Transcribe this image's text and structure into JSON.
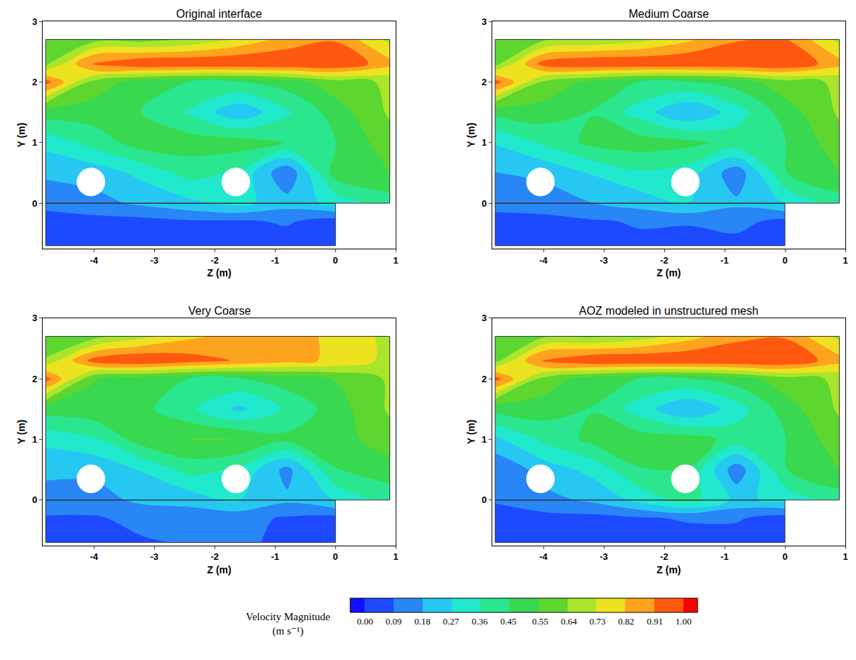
{
  "chart_data": [
    {
      "type": "contour",
      "title": "Original interface",
      "x_label": "Z (m)",
      "y_label": "Y (m)",
      "xlim": [
        -4.85,
        1.0
      ],
      "ylim": [
        -0.75,
        3.0
      ],
      "xticks": [
        -4,
        -3,
        -2,
        -1,
        0,
        1
      ],
      "yticks": [
        0,
        1,
        2,
        3
      ],
      "x": [
        -4.8,
        -4.0,
        -3.2,
        -2.4,
        -1.6,
        -0.8,
        0,
        0.9
      ],
      "y": [
        -0.7,
        -0.3,
        0,
        0.5,
        1.0,
        1.5,
        2.0,
        2.3,
        2.7
      ],
      "values": [
        [
          0.03,
          0.04,
          0.05,
          0.05,
          0.05,
          0.05,
          0.03,
          null
        ],
        [
          0.05,
          0.06,
          0.06,
          0.08,
          0.08,
          0.1,
          0.05,
          null
        ],
        [
          0.12,
          0.15,
          0.2,
          0.25,
          0.3,
          0.22,
          0.3,
          0.4
        ],
        [
          0.2,
          0.22,
          0.3,
          0.4,
          0.35,
          0.1,
          0.5,
          0.55
        ],
        [
          0.3,
          0.4,
          0.5,
          0.5,
          0.5,
          0.45,
          0.45,
          0.6
        ],
        [
          0.5,
          0.5,
          0.45,
          0.35,
          0.2,
          0.35,
          0.5,
          0.65
        ],
        [
          0.95,
          0.6,
          0.5,
          0.45,
          0.45,
          0.5,
          0.6,
          0.65
        ],
        [
          0.6,
          0.95,
          1.0,
          1.0,
          1.0,
          1.0,
          1.0,
          0.85
        ],
        [
          0.55,
          0.6,
          0.6,
          0.65,
          0.75,
          0.85,
          0.9,
          0.7
        ]
      ],
      "cylinders": [
        {
          "z": -4.05,
          "y": 0.35,
          "r": 0.23
        },
        {
          "z": -1.65,
          "y": 0.35,
          "r": 0.23
        }
      ]
    },
    {
      "type": "contour",
      "title": "Medium Coarse",
      "x_label": "Z (m)",
      "y_label": "Y (m)",
      "xlim": [
        -4.85,
        1.0
      ],
      "ylim": [
        -0.75,
        3.0
      ],
      "xticks": [
        -4,
        -3,
        -2,
        -1,
        0,
        1
      ],
      "yticks": [
        0,
        1,
        2,
        3
      ],
      "x": [
        -4.8,
        -4.0,
        -3.2,
        -2.4,
        -1.6,
        -0.8,
        0,
        0.9
      ],
      "y": [
        -0.7,
        -0.3,
        0,
        0.5,
        1.0,
        1.5,
        2.0,
        2.3,
        2.7
      ],
      "values": [
        [
          0.04,
          0.05,
          0.06,
          0.07,
          0.05,
          0.06,
          0.04,
          null
        ],
        [
          0.06,
          0.06,
          0.08,
          0.1,
          0.1,
          0.12,
          0.06,
          null
        ],
        [
          0.12,
          0.14,
          0.18,
          0.22,
          0.28,
          0.2,
          0.28,
          0.4
        ],
        [
          0.18,
          0.2,
          0.28,
          0.35,
          0.32,
          0.12,
          0.45,
          0.55
        ],
        [
          0.28,
          0.38,
          0.48,
          0.5,
          0.48,
          0.42,
          0.45,
          0.6
        ],
        [
          0.48,
          0.5,
          0.45,
          0.32,
          0.18,
          0.32,
          0.5,
          0.65
        ],
        [
          0.95,
          0.62,
          0.52,
          0.45,
          0.45,
          0.5,
          0.6,
          0.65
        ],
        [
          0.6,
          0.95,
          1.0,
          1.0,
          1.0,
          1.0,
          1.0,
          0.85
        ],
        [
          0.55,
          0.62,
          0.65,
          0.7,
          0.8,
          0.9,
          0.92,
          0.7
        ]
      ],
      "cylinders": [
        {
          "z": -4.05,
          "y": 0.35,
          "r": 0.23
        },
        {
          "z": -1.65,
          "y": 0.35,
          "r": 0.23
        }
      ]
    },
    {
      "type": "contour",
      "title": "Very Coarse",
      "x_label": "Z (m)",
      "y_label": "Y (m)",
      "xlim": [
        -4.85,
        1.0
      ],
      "ylim": [
        -0.75,
        3.0
      ],
      "xticks": [
        -4,
        -3,
        -2,
        -1,
        0,
        1
      ],
      "yticks": [
        0,
        1,
        2,
        3
      ],
      "x": [
        -4.8,
        -4.0,
        -3.2,
        -2.4,
        -1.6,
        -0.8,
        0,
        0.9
      ],
      "y": [
        -0.7,
        -0.3,
        0,
        0.5,
        1.0,
        1.5,
        2.0,
        2.3,
        2.7
      ],
      "values": [
        [
          0.05,
          0.05,
          0.08,
          0.1,
          0.1,
          0.08,
          0.05,
          null
        ],
        [
          0.08,
          0.08,
          0.12,
          0.12,
          0.12,
          0.08,
          0.06,
          null
        ],
        [
          0.15,
          0.15,
          0.2,
          0.22,
          0.28,
          0.2,
          0.28,
          0.4
        ],
        [
          0.2,
          0.2,
          0.28,
          0.4,
          0.35,
          0.15,
          0.45,
          0.5
        ],
        [
          0.3,
          0.35,
          0.5,
          0.55,
          0.55,
          0.48,
          0.5,
          0.6
        ],
        [
          0.5,
          0.52,
          0.48,
          0.38,
          0.25,
          0.38,
          0.5,
          0.65
        ],
        [
          0.95,
          0.55,
          0.5,
          0.45,
          0.45,
          0.5,
          0.55,
          0.65
        ],
        [
          0.65,
          0.95,
          1.0,
          0.95,
          0.9,
          0.85,
          0.8,
          0.7
        ],
        [
          0.55,
          0.6,
          0.7,
          0.8,
          0.85,
          0.85,
          0.8,
          0.7
        ]
      ],
      "cylinders": [
        {
          "z": -4.05,
          "y": 0.35,
          "r": 0.23
        },
        {
          "z": -1.65,
          "y": 0.35,
          "r": 0.23
        }
      ]
    },
    {
      "type": "contour",
      "title": "AOZ modeled in unstructured mesh",
      "x_label": "Z (m)",
      "y_label": "Y (m)",
      "xlim": [
        -4.85,
        1.0
      ],
      "ylim": [
        -0.75,
        3.0
      ],
      "xticks": [
        -4,
        -3,
        -2,
        -1,
        0,
        1
      ],
      "yticks": [
        0,
        1,
        2,
        3
      ],
      "x": [
        -4.8,
        -4.0,
        -3.2,
        -2.4,
        -1.6,
        -0.8,
        0,
        0.9
      ],
      "y": [
        -0.7,
        -0.3,
        0,
        0.5,
        1.0,
        1.5,
        2.0,
        2.3,
        2.7
      ],
      "values": [
        [
          0.03,
          0.04,
          0.05,
          0.05,
          0.05,
          0.05,
          0.03,
          null
        ],
        [
          0.05,
          0.06,
          0.06,
          0.08,
          0.1,
          0.1,
          0.05,
          null
        ],
        [
          0.1,
          0.15,
          0.2,
          0.3,
          0.4,
          0.25,
          0.3,
          0.4
        ],
        [
          0.1,
          0.22,
          0.3,
          0.45,
          0.45,
          0.12,
          0.45,
          0.55
        ],
        [
          0.25,
          0.38,
          0.48,
          0.5,
          0.5,
          0.42,
          0.45,
          0.6
        ],
        [
          0.48,
          0.5,
          0.45,
          0.32,
          0.18,
          0.32,
          0.5,
          0.65
        ],
        [
          0.95,
          0.6,
          0.5,
          0.45,
          0.45,
          0.5,
          0.6,
          0.65
        ],
        [
          0.6,
          0.95,
          1.0,
          1.0,
          1.0,
          1.0,
          1.0,
          0.85
        ],
        [
          0.55,
          0.62,
          0.62,
          0.68,
          0.78,
          0.88,
          0.9,
          0.7
        ]
      ],
      "cylinders": [
        {
          "z": -4.05,
          "y": 0.35,
          "r": 0.23
        },
        {
          "z": -1.65,
          "y": 0.35,
          "r": 0.23
        }
      ]
    }
  ],
  "colorbar": {
    "title": "Velocity Magnitude (m s⁻¹)",
    "range": [
      0,
      1
    ],
    "ticks": [
      {
        "value": 0,
        "label": "0.00"
      },
      {
        "value": 0.09,
        "label": "0.09"
      },
      {
        "value": 0.18,
        "label": "0.18"
      },
      {
        "value": 0.27,
        "label": "0.27"
      },
      {
        "value": 0.36,
        "label": "0.36"
      },
      {
        "value": 0.45,
        "label": "0.45"
      },
      {
        "value": 0.55,
        "label": "0.55"
      },
      {
        "value": 0.64,
        "label": "0.64"
      },
      {
        "value": 0.73,
        "label": "0.73"
      },
      {
        "value": 0.82,
        "label": "0.82"
      },
      {
        "value": 0.91,
        "label": "0.91"
      },
      {
        "value": 1,
        "label": "1.00"
      }
    ]
  }
}
